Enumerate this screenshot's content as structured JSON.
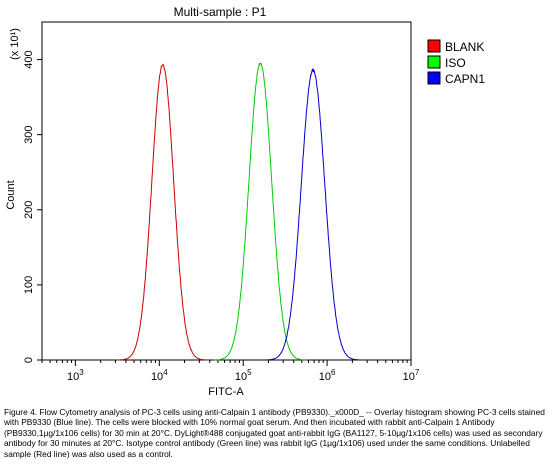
{
  "chart_data": {
    "type": "line",
    "title": "Multi-sample : P1",
    "xlabel": "FITC-A",
    "ylabel": "Count",
    "y_multiplier": "(x 10¹)",
    "x_scale": "log",
    "x_ticks": [
      1000,
      10000,
      100000,
      1000000,
      10000000
    ],
    "x_tick_labels": [
      {
        "base": "10",
        "exp": "3"
      },
      {
        "base": "10",
        "exp": "4"
      },
      {
        "base": "10",
        "exp": "5"
      },
      {
        "base": "10",
        "exp": "6"
      },
      {
        "base": "10",
        "exp": "7"
      }
    ],
    "xlim": [
      400,
      10000000
    ],
    "ylim": [
      0,
      450
    ],
    "y_ticks": [
      0,
      100,
      200,
      300,
      400
    ],
    "y_tick_labels": [
      "0",
      "100",
      "200",
      "300",
      "400"
    ],
    "legend_position": "right",
    "grid": false,
    "series": [
      {
        "name": "BLANK",
        "color": "#cc0000",
        "swatch_color": "#ff0000",
        "peak_x": 11000,
        "peak_y": 393,
        "sigma_log10": 0.13
      },
      {
        "name": "ISO",
        "color": "#00cc00",
        "swatch_color": "#00ff00",
        "peak_x": 160000,
        "peak_y": 395,
        "sigma_log10": 0.135
      },
      {
        "name": "CAPN1",
        "color": "#0000cc",
        "swatch_color": "#0000ff",
        "peak_x": 680000,
        "peak_y": 386,
        "sigma_log10": 0.14
      }
    ]
  },
  "caption": "Figure 4. Flow Cytometry analysis of PC-3 cells using anti-Calpain 1 antibody (PB9330)._x000D_ -- Overlay histogram showing PC-3 cells stained with PB9330 (Blue line). The cells were blocked with 10% normal goat serum. And then incubated with rabbit anti-Calpain 1 Antibody (PB9330,1μg/1x106 cells) for 30 min at 20°C. DyLight®488 conjugated goat anti-rabbit IgG (BA1127, 5-10μg/1x106 cells) was used as secondary antibody for 30 minutes at 20°C. Isotype control antibody (Green line) was rabbit IgG (1μg/1x106) used under the same conditions. Unlabelled sample (Red line) was also used as a control."
}
